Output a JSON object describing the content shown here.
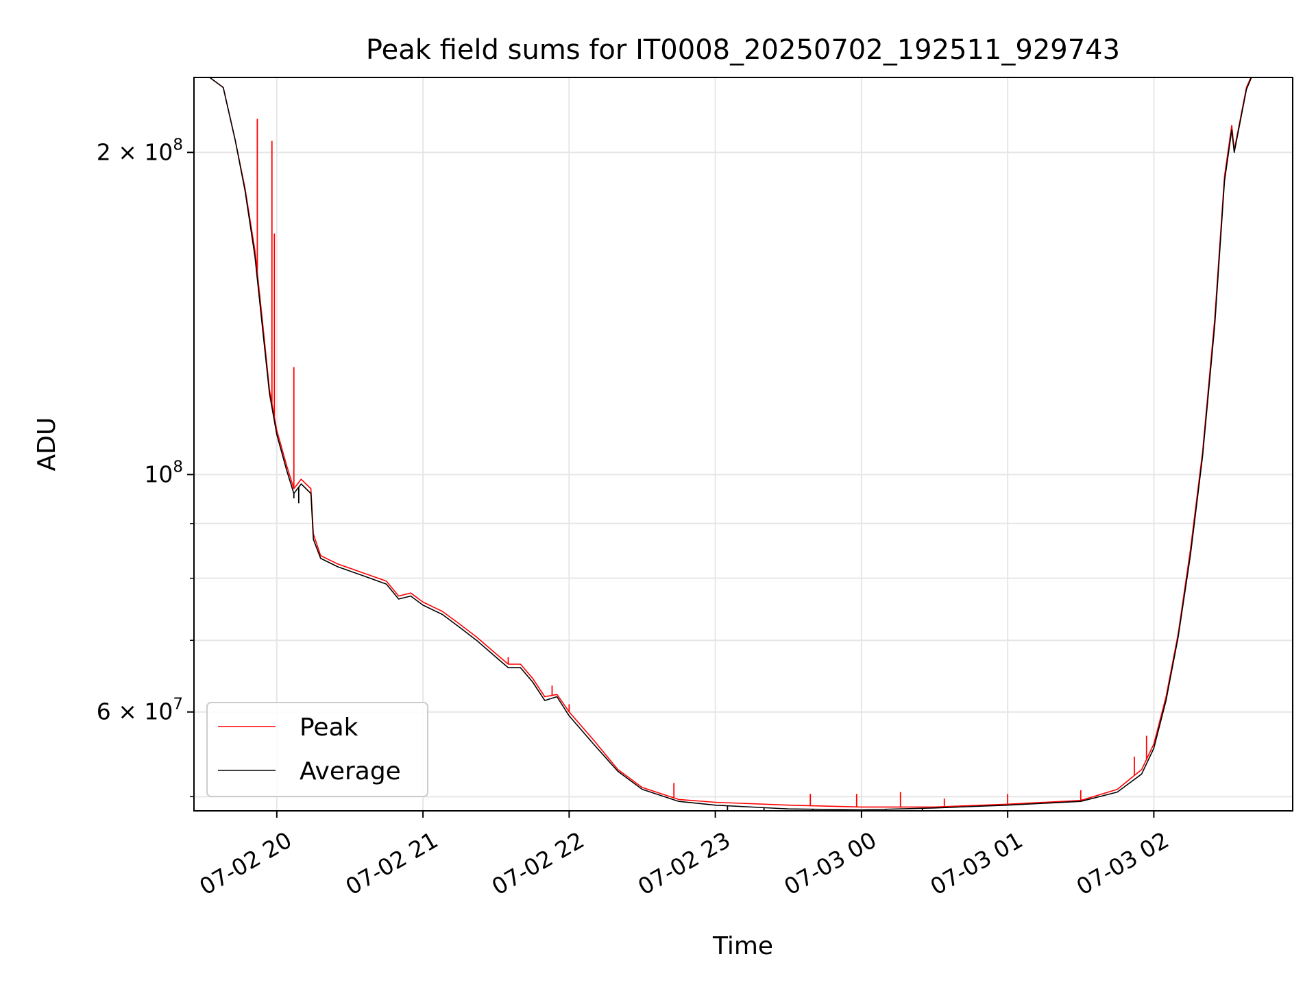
{
  "chart_data": {
    "type": "line",
    "title": "Peak field sums for IT0008_20250702_192511_929743",
    "xlabel": "Time",
    "ylabel": "ADU",
    "yscale": "log",
    "xlim": [
      "2025-07-02 19:26",
      "2025-07-03 02:57"
    ],
    "ylim": [
      48500000,
      235000000
    ],
    "grid": true,
    "legend_position": "lower-left",
    "x_ticks": [
      {
        "time": "2025-07-02 20:00",
        "label": "07-02 20"
      },
      {
        "time": "2025-07-02 21:00",
        "label": "07-02 21"
      },
      {
        "time": "2025-07-02 22:00",
        "label": "07-02 22"
      },
      {
        "time": "2025-07-02 23:00",
        "label": "07-02 23"
      },
      {
        "time": "2025-07-03 00:00",
        "label": "07-03 00"
      },
      {
        "time": "2025-07-03 01:00",
        "label": "07-03 01"
      },
      {
        "time": "2025-07-03 02:00",
        "label": "07-03 02"
      }
    ],
    "y_major_ticks": [
      {
        "value": 100000000,
        "base": "10",
        "exp": "8"
      },
      {
        "value": 200000000,
        "base": "2 × 10",
        "exp": "8"
      },
      {
        "value": 60000000,
        "base": "6 × 10",
        "exp": "7"
      }
    ],
    "y_minor_ticks": [
      50000000,
      70000000,
      80000000,
      90000000
    ],
    "series": [
      {
        "name": "Peak",
        "color": "#ff0000",
        "points": [
          [
            "2025-07-02 19:27",
            240000000
          ],
          [
            "2025-07-02 19:38",
            230000000
          ],
          [
            "2025-07-02 19:43",
            205000000
          ],
          [
            "2025-07-02 19:47",
            185000000
          ],
          [
            "2025-07-02 19:51",
            162000000
          ],
          [
            "2025-07-02 19:54",
            140000000
          ],
          [
            "2025-07-02 19:57",
            120000000
          ],
          [
            "2025-07-02 20:00",
            110000000
          ],
          [
            "2025-07-02 20:04",
            102000000
          ],
          [
            "2025-07-02 20:07",
            97000000
          ],
          [
            "2025-07-02 20:10",
            99000000
          ],
          [
            "2025-07-02 20:14",
            97000000
          ],
          [
            "2025-07-02 20:15",
            88000000
          ],
          [
            "2025-07-02 20:18",
            84000000
          ],
          [
            "2025-07-02 20:25",
            82500000
          ],
          [
            "2025-07-02 20:35",
            81000000
          ],
          [
            "2025-07-02 20:45",
            79500000
          ],
          [
            "2025-07-02 20:50",
            77000000
          ],
          [
            "2025-07-02 20:55",
            77500000
          ],
          [
            "2025-07-02 21:00",
            76000000
          ],
          [
            "2025-07-02 21:08",
            74500000
          ],
          [
            "2025-07-02 21:15",
            72500000
          ],
          [
            "2025-07-02 21:22",
            70500000
          ],
          [
            "2025-07-02 21:30",
            68000000
          ],
          [
            "2025-07-02 21:35",
            66500000
          ],
          [
            "2025-07-02 21:40",
            66500000
          ],
          [
            "2025-07-02 21:45",
            64500000
          ],
          [
            "2025-07-02 21:50",
            62000000
          ],
          [
            "2025-07-02 21:55",
            62300000
          ],
          [
            "2025-07-02 22:00",
            60000000
          ],
          [
            "2025-07-02 22:10",
            56500000
          ],
          [
            "2025-07-02 22:20",
            53000000
          ],
          [
            "2025-07-02 22:30",
            51000000
          ],
          [
            "2025-07-02 22:45",
            49700000
          ],
          [
            "2025-07-02 23:00",
            49400000
          ],
          [
            "2025-07-02 23:30",
            49100000
          ],
          [
            "2025-07-03 00:00",
            48900000
          ],
          [
            "2025-07-03 00:30",
            48900000
          ],
          [
            "2025-07-03 01:00",
            49200000
          ],
          [
            "2025-07-03 01:30",
            49600000
          ],
          [
            "2025-07-03 01:45",
            50800000
          ],
          [
            "2025-07-03 01:55",
            53000000
          ],
          [
            "2025-07-03 02:00",
            56000000
          ],
          [
            "2025-07-03 02:05",
            62000000
          ],
          [
            "2025-07-03 02:10",
            71000000
          ],
          [
            "2025-07-03 02:15",
            85000000
          ],
          [
            "2025-07-03 02:20",
            105000000
          ],
          [
            "2025-07-03 02:25",
            140000000
          ],
          [
            "2025-07-03 02:29",
            190000000
          ],
          [
            "2025-07-03 02:32",
            212000000
          ],
          [
            "2025-07-03 02:33",
            201000000
          ],
          [
            "2025-07-03 02:38",
            230000000
          ],
          [
            "2025-07-03 02:45",
            250000000
          ]
        ],
        "spikes": [
          [
            "2025-07-02 19:52",
            215000000
          ],
          [
            "2025-07-02 19:53",
            145000000
          ],
          [
            "2025-07-02 19:58",
            205000000
          ],
          [
            "2025-07-02 19:59",
            168000000
          ],
          [
            "2025-07-02 20:07",
            126000000
          ],
          [
            "2025-07-02 21:35",
            67500000
          ],
          [
            "2025-07-02 21:53",
            63500000
          ],
          [
            "2025-07-02 22:00",
            61000000
          ],
          [
            "2025-07-02 22:43",
            51500000
          ],
          [
            "2025-07-02 23:39",
            50300000
          ],
          [
            "2025-07-02 23:58",
            50300000
          ],
          [
            "2025-07-03 00:16",
            50500000
          ],
          [
            "2025-07-03 00:34",
            49800000
          ],
          [
            "2025-07-03 01:00",
            50300000
          ],
          [
            "2025-07-03 01:30",
            50700000
          ],
          [
            "2025-07-03 01:52",
            54500000
          ],
          [
            "2025-07-03 01:57",
            57000000
          ]
        ]
      },
      {
        "name": "Average",
        "color": "#000000",
        "points": [
          [
            "2025-07-02 19:27",
            240000000
          ],
          [
            "2025-07-02 19:38",
            230000000
          ],
          [
            "2025-07-02 19:43",
            205000000
          ],
          [
            "2025-07-02 19:47",
            184000000
          ],
          [
            "2025-07-02 19:51",
            160000000
          ],
          [
            "2025-07-02 19:54",
            138000000
          ],
          [
            "2025-07-02 19:57",
            119000000
          ],
          [
            "2025-07-02 20:00",
            109000000
          ],
          [
            "2025-07-02 20:04",
            101000000
          ],
          [
            "2025-07-02 20:07",
            96000000
          ],
          [
            "2025-07-02 20:10",
            98000000
          ],
          [
            "2025-07-02 20:14",
            96000000
          ],
          [
            "2025-07-02 20:15",
            87000000
          ],
          [
            "2025-07-02 20:18",
            83500000
          ],
          [
            "2025-07-02 20:25",
            82000000
          ],
          [
            "2025-07-02 20:35",
            80500000
          ],
          [
            "2025-07-02 20:45",
            79000000
          ],
          [
            "2025-07-02 20:50",
            76500000
          ],
          [
            "2025-07-02 20:55",
            77000000
          ],
          [
            "2025-07-02 21:00",
            75500000
          ],
          [
            "2025-07-02 21:08",
            74000000
          ],
          [
            "2025-07-02 21:15",
            72000000
          ],
          [
            "2025-07-02 21:22",
            70000000
          ],
          [
            "2025-07-02 21:30",
            67500000
          ],
          [
            "2025-07-02 21:35",
            66000000
          ],
          [
            "2025-07-02 21:40",
            66000000
          ],
          [
            "2025-07-02 21:45",
            64000000
          ],
          [
            "2025-07-02 21:50",
            61500000
          ],
          [
            "2025-07-02 21:55",
            62000000
          ],
          [
            "2025-07-02 22:00",
            59500000
          ],
          [
            "2025-07-02 22:10",
            56000000
          ],
          [
            "2025-07-02 22:20",
            52800000
          ],
          [
            "2025-07-02 22:30",
            50800000
          ],
          [
            "2025-07-02 22:45",
            49500000
          ],
          [
            "2025-07-02 23:00",
            49100000
          ],
          [
            "2025-07-02 23:30",
            48700000
          ],
          [
            "2025-07-03 00:00",
            48600000
          ],
          [
            "2025-07-03 00:30",
            48800000
          ],
          [
            "2025-07-03 01:00",
            49100000
          ],
          [
            "2025-07-03 01:30",
            49500000
          ],
          [
            "2025-07-03 01:45",
            50500000
          ],
          [
            "2025-07-03 01:55",
            52500000
          ],
          [
            "2025-07-03 02:00",
            55500000
          ],
          [
            "2025-07-03 02:05",
            61500000
          ],
          [
            "2025-07-03 02:10",
            70500000
          ],
          [
            "2025-07-03 02:15",
            84000000
          ],
          [
            "2025-07-03 02:20",
            104000000
          ],
          [
            "2025-07-03 02:25",
            138000000
          ],
          [
            "2025-07-03 02:29",
            188000000
          ],
          [
            "2025-07-03 02:32",
            210000000
          ],
          [
            "2025-07-03 02:33",
            200000000
          ],
          [
            "2025-07-03 02:38",
            229000000
          ],
          [
            "2025-07-03 02:45",
            250000000
          ]
        ],
        "dips": [
          [
            "2025-07-02 20:07",
            95000000
          ],
          [
            "2025-07-02 20:09",
            94000000
          ],
          [
            "2025-07-02 23:05",
            48300000
          ],
          [
            "2025-07-02 23:20",
            48000000
          ],
          [
            "2025-07-02 23:40",
            47900000
          ],
          [
            "2025-07-02 23:55",
            48000000
          ],
          [
            "2025-07-03 00:10",
            48100000
          ],
          [
            "2025-07-03 00:25",
            48200000
          ]
        ]
      }
    ]
  }
}
